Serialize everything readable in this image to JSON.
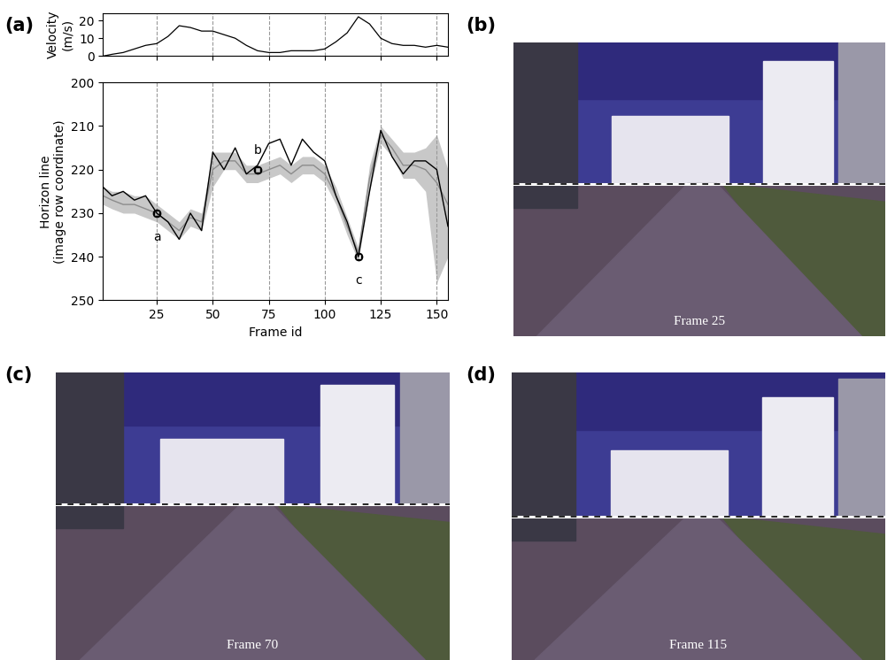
{
  "panel_labels": [
    "(a)",
    "(b)",
    "(c)",
    "(d)"
  ],
  "chart_data": [
    {
      "type": "line",
      "y_label": "Velocity\n(m/s)",
      "x": [
        1,
        5,
        10,
        15,
        20,
        25,
        30,
        35,
        40,
        45,
        50,
        55,
        60,
        65,
        70,
        75,
        80,
        85,
        90,
        95,
        100,
        105,
        110,
        115,
        120,
        125,
        130,
        135,
        140,
        145,
        150,
        155
      ],
      "series": [
        {
          "name": null,
          "color": "#000000",
          "values": [
            0,
            1,
            2,
            4,
            6,
            7,
            11,
            17,
            16,
            14,
            14,
            12,
            10,
            6,
            3,
            2,
            2,
            3,
            3,
            3,
            4,
            8,
            13,
            22,
            18,
            10,
            7,
            6,
            6,
            5,
            6,
            5
          ]
        }
      ],
      "xlim": [
        1,
        155
      ],
      "xticks": [
        25,
        50,
        75,
        100,
        125,
        150
      ],
      "ylim": [
        0,
        24
      ],
      "yticks": [
        0,
        10,
        20
      ],
      "grid": "x",
      "tick_labels": "y"
    },
    {
      "type": "line",
      "x_label": "Frame id",
      "y_label": "Horizon line\n(image row coordinate)",
      "x": [
        1,
        5,
        10,
        15,
        20,
        25,
        30,
        35,
        40,
        45,
        50,
        55,
        60,
        65,
        70,
        75,
        80,
        85,
        90,
        95,
        100,
        105,
        110,
        115,
        120,
        125,
        130,
        135,
        140,
        145,
        150,
        155
      ],
      "series": [
        {
          "name": null,
          "color": "#000000",
          "values": [
            224,
            226,
            225,
            227,
            226,
            230,
            232,
            236,
            230,
            234,
            216,
            220,
            215,
            221,
            219,
            214,
            213,
            219,
            213,
            216,
            218,
            226,
            232,
            240,
            225,
            211,
            217,
            221,
            218,
            218,
            220,
            233
          ]
        },
        {
          "name": null,
          "color": "#8c8c8c",
          "values": [
            226,
            227,
            228,
            228,
            229,
            230,
            232,
            234,
            231,
            232,
            220,
            218,
            218,
            221,
            221,
            220,
            219,
            221,
            219,
            219,
            221,
            226,
            233,
            239,
            222,
            212,
            215,
            219,
            219,
            220,
            223,
            228
          ]
        }
      ],
      "band_color": "#c8c8c8",
      "band_lower": [
        224,
        225,
        225,
        226,
        226,
        228,
        230,
        232,
        229,
        230,
        216,
        216,
        216,
        219,
        219,
        218,
        217,
        219,
        217,
        217,
        219,
        224,
        231,
        238,
        219,
        210,
        213,
        216,
        216,
        215,
        212,
        220
      ],
      "band_upper": [
        228,
        229,
        230,
        230,
        231,
        232,
        234,
        236,
        233,
        234,
        224,
        220,
        220,
        223,
        223,
        222,
        221,
        223,
        221,
        221,
        223,
        228,
        235,
        241,
        225,
        214,
        217,
        222,
        222,
        225,
        246,
        240
      ],
      "annotations": [
        {
          "text": "a",
          "x": 25,
          "y": 230
        },
        {
          "text": "b",
          "x": 70,
          "y": 220
        },
        {
          "text": "c",
          "x": 115,
          "y": 240
        }
      ],
      "xlim": [
        1,
        155
      ],
      "xticks": [
        25,
        50,
        75,
        100,
        125,
        150
      ],
      "ylim": [
        250,
        200
      ],
      "yticks": [
        200,
        210,
        220,
        230,
        240,
        250
      ],
      "grid": "x"
    }
  ],
  "images": [
    {
      "label": "Frame 25"
    },
    {
      "label": "Frame 70"
    },
    {
      "label": "Frame 115"
    }
  ]
}
